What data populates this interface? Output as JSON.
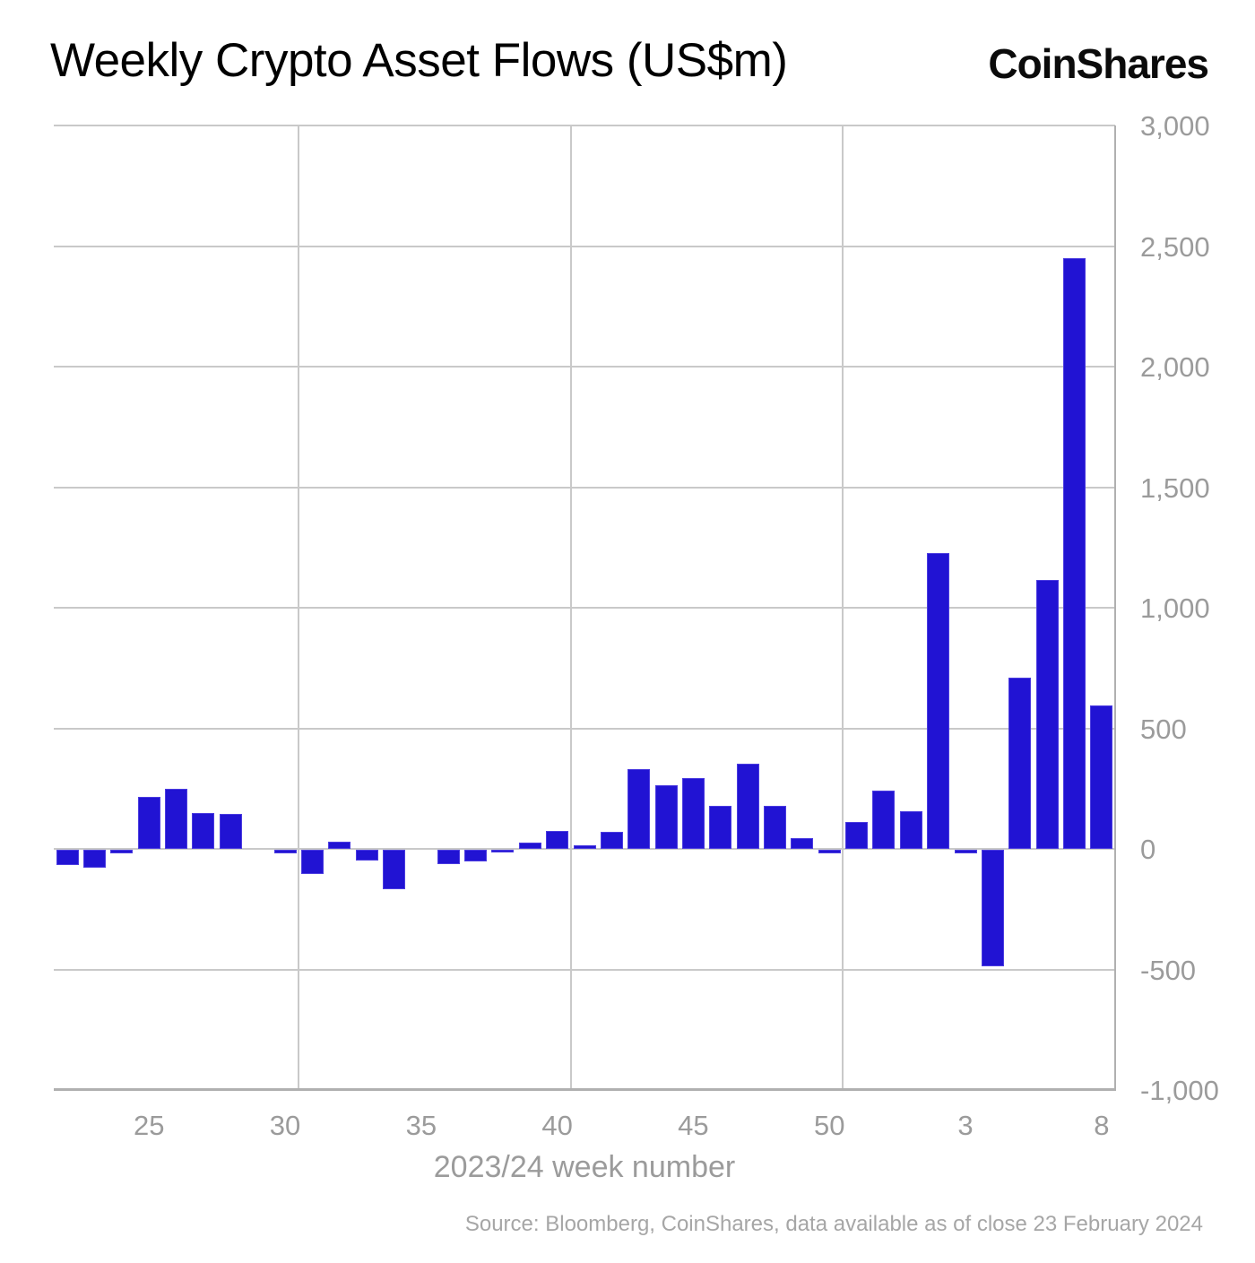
{
  "header": {
    "title": "Weekly Crypto Asset Flows (US$m)",
    "brand": "CoinShares"
  },
  "chart_data": {
    "type": "bar",
    "title": "Weekly Crypto Asset Flows (US$m)",
    "xlabel": "2023/24 week number",
    "ylabel": "",
    "ylim": [
      -1000,
      3000
    ],
    "ytick_interval": 500,
    "ytick_labels": [
      "3,000",
      "2,500",
      "2,000",
      "1,500",
      "1,000",
      "500",
      "0",
      "-500",
      "-1,000"
    ],
    "categories": [
      "22",
      "23",
      "24",
      "25",
      "26",
      "27",
      "28",
      "29",
      "30",
      "31",
      "32",
      "33",
      "34",
      "35",
      "36",
      "37",
      "38",
      "39",
      "40",
      "41",
      "42",
      "43",
      "44",
      "45",
      "46",
      "47",
      "48",
      "49",
      "50",
      "51",
      "52",
      "1",
      "2",
      "3",
      "4",
      "5",
      "6",
      "7",
      "8"
    ],
    "values": [
      -65,
      -75,
      -15,
      215,
      250,
      150,
      145,
      0,
      -15,
      -100,
      30,
      -45,
      -165,
      0,
      -60,
      -50,
      -10,
      25,
      75,
      15,
      70,
      330,
      265,
      295,
      180,
      355,
      180,
      45,
      -15,
      110,
      240,
      155,
      1225,
      -15,
      -485,
      710,
      1115,
      2450,
      595
    ],
    "xticks": [
      {
        "index": 3,
        "label": "25"
      },
      {
        "index": 8,
        "label": "30"
      },
      {
        "index": 13,
        "label": "35"
      },
      {
        "index": 18,
        "label": "40"
      },
      {
        "index": 23,
        "label": "45"
      },
      {
        "index": 28,
        "label": "50"
      },
      {
        "index": 33,
        "label": "3"
      },
      {
        "index": 38,
        "label": "8"
      }
    ],
    "vgrid_after_indices": [
      8,
      18,
      28
    ],
    "legend": "none",
    "grid": true,
    "y_axis_side": "right",
    "colors": {
      "bar": "#2113d3",
      "bar_border": "#4b3ce0",
      "grid": "#c9c9c9",
      "axis": "#b0b0b0",
      "tick_label": "#9b9b9b",
      "title": "#000000",
      "source_text": "#a6a6a6"
    }
  },
  "footer": {
    "source": "Source: Bloomberg, CoinShares, data available as of close 23 February 2024"
  }
}
